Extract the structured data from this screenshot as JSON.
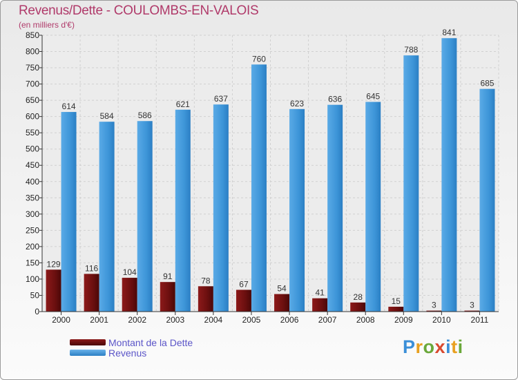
{
  "title": "Revenus/Dette - COULOMBS-EN-VALOIS",
  "subtitle": "(en milliers d'€)",
  "logo": {
    "text": "Proxiti",
    "colors": [
      "#3b8fd8",
      "#e8a020",
      "#6aa83a",
      "#d94a30",
      "#3b8fd8",
      "#e8a020",
      "#6aa83a"
    ]
  },
  "legend": [
    {
      "label": "Montant de la Dette",
      "color": "#6b0f0f"
    },
    {
      "label": "Revenus",
      "color": "#3d95d8"
    }
  ],
  "chart_data": {
    "type": "bar",
    "title": "Revenus/Dette - COULOMBS-EN-VALOIS",
    "ylabel": "(en milliers d'€)",
    "xlabel": "",
    "ylim": [
      0,
      850
    ],
    "ytick_step": 50,
    "grid": true,
    "legend_position": "bottom-left",
    "categories": [
      "2000",
      "2001",
      "2002",
      "2003",
      "2004",
      "2005",
      "2006",
      "2007",
      "2008",
      "2009",
      "2010",
      "2011"
    ],
    "series": [
      {
        "name": "Montant de la Dette",
        "color": "#6b0f0f",
        "values": [
          129,
          116,
          104,
          91,
          78,
          67,
          54,
          41,
          28,
          15,
          3,
          3
        ]
      },
      {
        "name": "Revenus",
        "color": "#3d95d8",
        "values": [
          614,
          584,
          586,
          621,
          637,
          760,
          623,
          636,
          645,
          788,
          841,
          685
        ]
      }
    ]
  }
}
